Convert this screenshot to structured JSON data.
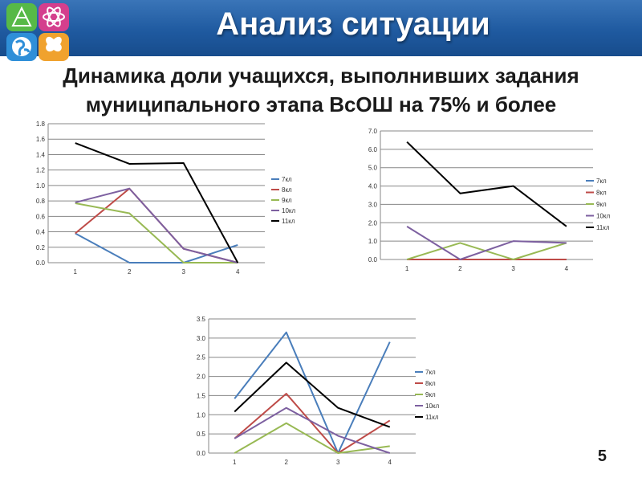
{
  "slide": {
    "title": "Анализ ситуации",
    "subtitle_line1": "Динамика доли учащихся, выполнивших задания",
    "subtitle_line2": "муниципального этапа ВсОШ на 75% и более",
    "page_number": "5"
  },
  "logo": {
    "icon": "subject-icons-logo",
    "colors": [
      "#57b947",
      "#d43f8d",
      "#2f8fd8",
      "#f0a22e"
    ]
  },
  "series_colors": [
    "#4a7ebb",
    "#be4b48",
    "#98b954",
    "#7d60a0",
    "#000000"
  ],
  "chart_data": [
    {
      "type": "line",
      "x": [
        "1",
        "2",
        "3",
        "4"
      ],
      "ylim": [
        0,
        1.8
      ],
      "ytick_step": 0.2,
      "ytick_decimals": 1,
      "grid": true,
      "legend": "right",
      "series": [
        {
          "name": "7кл",
          "values": [
            0.38,
            0,
            0,
            0.23
          ]
        },
        {
          "name": "8кл",
          "values": [
            0.38,
            0.96,
            0.18,
            0
          ]
        },
        {
          "name": "9кл",
          "values": [
            0.77,
            0.64,
            0,
            0
          ]
        },
        {
          "name": "10кл",
          "values": [
            0.78,
            0.96,
            0.18,
            0
          ]
        },
        {
          "name": "11кл",
          "values": [
            1.55,
            1.28,
            1.29,
            0
          ]
        }
      ]
    },
    {
      "type": "line",
      "x": [
        "1",
        "2",
        "3",
        "4"
      ],
      "ylim": [
        0,
        7
      ],
      "ytick_step": 1,
      "ytick_decimals": 1,
      "grid": true,
      "legend": "right",
      "series": [
        {
          "name": "7кл",
          "values": [
            0,
            0,
            0,
            0
          ]
        },
        {
          "name": "8кл",
          "values": [
            0,
            0,
            0,
            0
          ]
        },
        {
          "name": "9кл",
          "values": [
            0,
            0.9,
            0,
            0.9
          ]
        },
        {
          "name": "10кл",
          "values": [
            1.8,
            0,
            1.0,
            0.9
          ]
        },
        {
          "name": "11кл",
          "values": [
            6.4,
            3.6,
            4.0,
            1.8
          ]
        }
      ]
    },
    {
      "type": "line",
      "x": [
        "1",
        "2",
        "3",
        "4"
      ],
      "ylim": [
        0,
        3.5
      ],
      "ytick_step": 0.5,
      "ytick_decimals": 1,
      "grid": true,
      "legend": "right",
      "series": [
        {
          "name": "7кл",
          "values": [
            1.42,
            3.15,
            0,
            2.9
          ]
        },
        {
          "name": "8кл",
          "values": [
            0.38,
            1.55,
            0,
            0.85
          ]
        },
        {
          "name": "9кл",
          "values": [
            0,
            0.78,
            0,
            0.18
          ]
        },
        {
          "name": "10кл",
          "values": [
            0.38,
            1.18,
            0.45,
            0
          ]
        },
        {
          "name": "11кл",
          "values": [
            1.08,
            2.36,
            1.18,
            0.68
          ]
        }
      ]
    }
  ]
}
